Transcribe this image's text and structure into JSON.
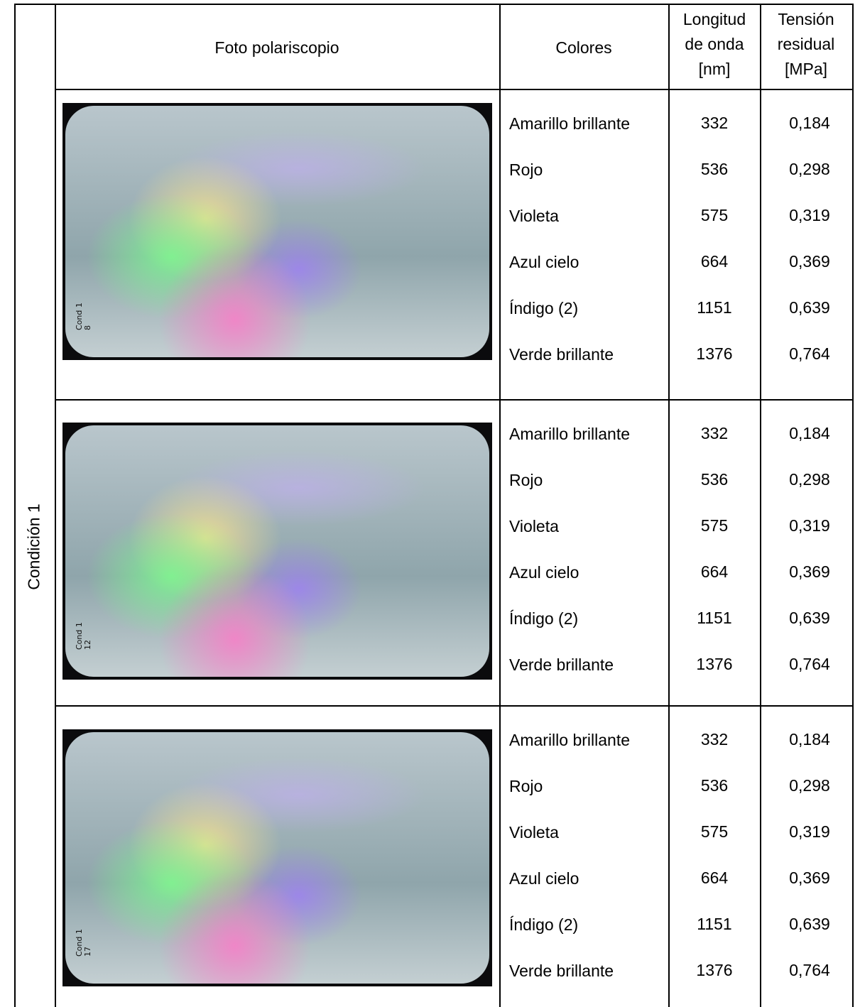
{
  "table": {
    "group_label": "Condición 1",
    "header": {
      "photo": "Foto polariscopio",
      "colors": "Colores",
      "wavelength": [
        "Longitud",
        "de onda",
        "[nm]"
      ],
      "stress": [
        "Tensión",
        "residual",
        "[MPa]"
      ]
    },
    "rows": [
      {
        "photo_label": [
          "Cond 1",
          "8"
        ],
        "entries": [
          [
            "Amarillo brillante",
            "332",
            "0,184"
          ],
          [
            "Rojo",
            "536",
            "0,298"
          ],
          [
            "Violeta",
            "575",
            "0,319"
          ],
          [
            "Azul cielo",
            "664",
            "0,369"
          ],
          [
            "Índigo (2)",
            "1151",
            "0,639"
          ],
          [
            "Verde brillante",
            "1376",
            "0,764"
          ]
        ]
      },
      {
        "photo_label": [
          "Cond 1",
          "12"
        ],
        "entries": [
          [
            "Amarillo brillante",
            "332",
            "0,184"
          ],
          [
            "Rojo",
            "536",
            "0,298"
          ],
          [
            "Violeta",
            "575",
            "0,319"
          ],
          [
            "Azul cielo",
            "664",
            "0,369"
          ],
          [
            "Índigo (2)",
            "1151",
            "0,639"
          ],
          [
            "Verde brillante",
            "1376",
            "0,764"
          ]
        ]
      },
      {
        "photo_label": [
          "Cond 1",
          "17"
        ],
        "entries": [
          [
            "Amarillo brillante",
            "332",
            "0,184"
          ],
          [
            "Rojo",
            "536",
            "0,298"
          ],
          [
            "Violeta",
            "575",
            "0,319"
          ],
          [
            "Azul cielo",
            "664",
            "0,369"
          ],
          [
            "Índigo (2)",
            "1151",
            "0,639"
          ],
          [
            "Verde brillante",
            "1376",
            "0,764"
          ]
        ]
      }
    ]
  }
}
